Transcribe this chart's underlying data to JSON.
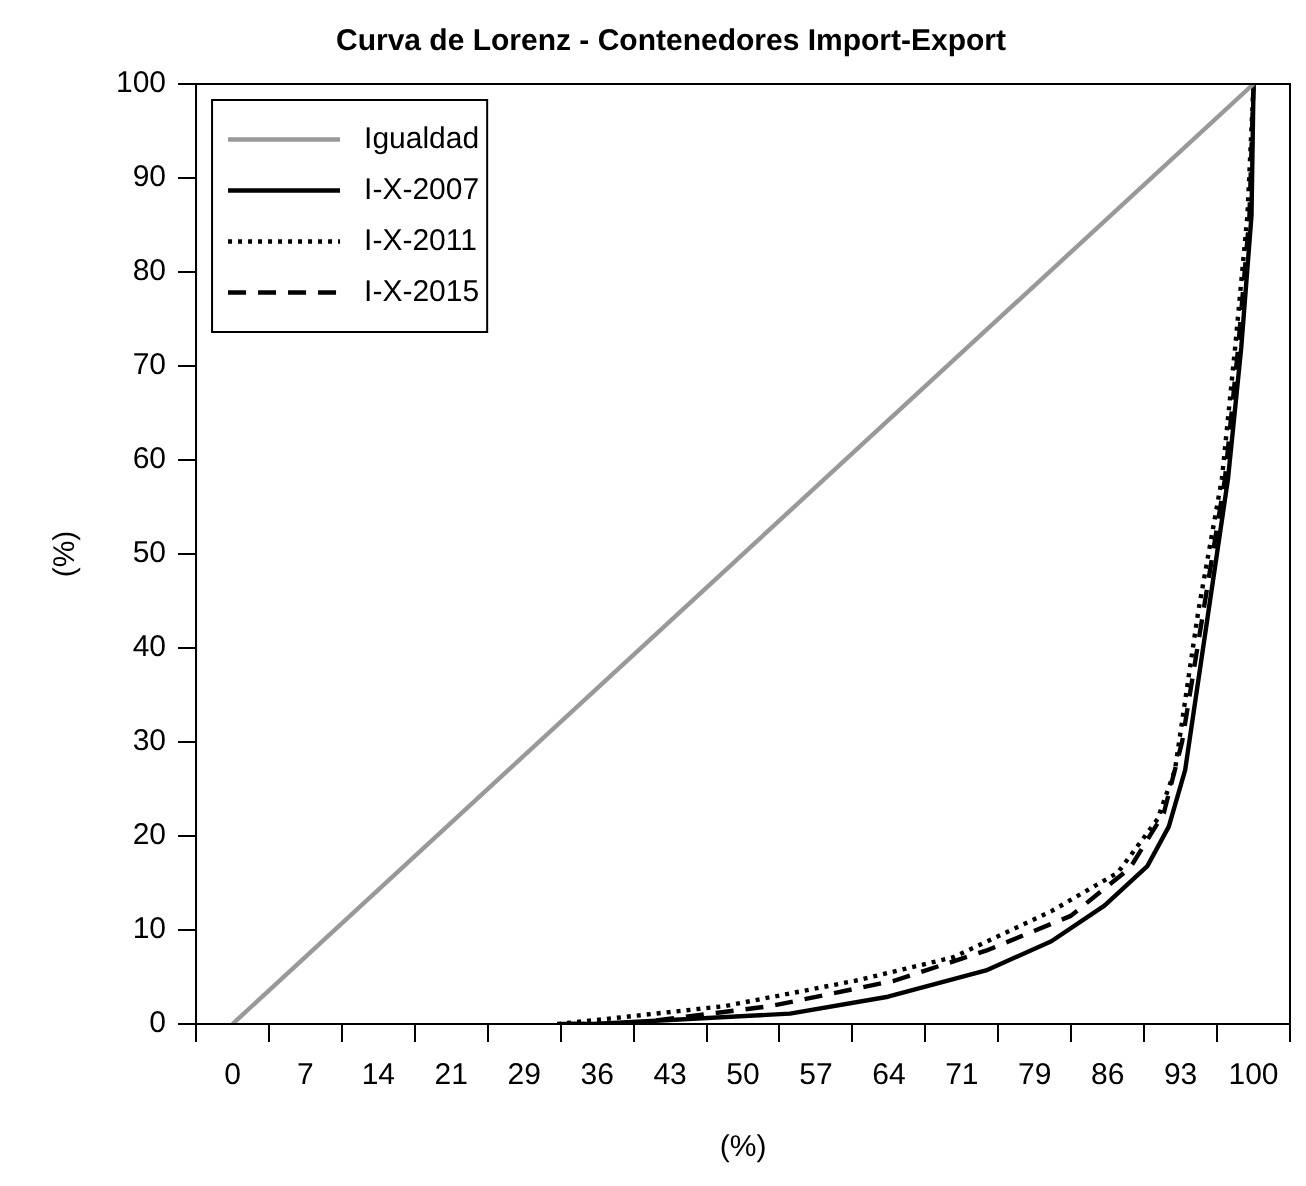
{
  "chart_data": {
    "type": "line",
    "title": "Curva de Lorenz - Contenedores Import-Export",
    "xlabel": "(%)",
    "ylabel": "(%)",
    "xlim": [
      -3.5714,
      103.5714
    ],
    "ylim": [
      0,
      100
    ],
    "xticks": [
      {
        "value": -3.5714,
        "label": null
      },
      {
        "value": 0,
        "label": "0"
      },
      {
        "value": 3.5714,
        "label": null
      },
      {
        "value": 7.1429,
        "label": "7"
      },
      {
        "value": 10.7143,
        "label": null
      },
      {
        "value": 14.2857,
        "label": "14"
      },
      {
        "value": 17.8571,
        "label": null
      },
      {
        "value": 21.4286,
        "label": "21"
      },
      {
        "value": 25,
        "label": null
      },
      {
        "value": 28.5714,
        "label": "29"
      },
      {
        "value": 32.1429,
        "label": null
      },
      {
        "value": 35.7143,
        "label": "36"
      },
      {
        "value": 39.2857,
        "label": null
      },
      {
        "value": 42.8571,
        "label": "43"
      },
      {
        "value": 46.4286,
        "label": null
      },
      {
        "value": 50,
        "label": "50"
      },
      {
        "value": 53.5714,
        "label": null
      },
      {
        "value": 57.1429,
        "label": "57"
      },
      {
        "value": 60.7143,
        "label": null
      },
      {
        "value": 64.2857,
        "label": "64"
      },
      {
        "value": 67.8571,
        "label": null
      },
      {
        "value": 71.4286,
        "label": "71"
      },
      {
        "value": 75,
        "label": null
      },
      {
        "value": 78.5714,
        "label": "79"
      },
      {
        "value": 82.1429,
        "label": null
      },
      {
        "value": 85.7143,
        "label": "86"
      },
      {
        "value": 89.2857,
        "label": null
      },
      {
        "value": 92.8571,
        "label": "93"
      },
      {
        "value": 96.4286,
        "label": null
      },
      {
        "value": 100,
        "label": "100"
      },
      {
        "value": 103.5714,
        "label": null
      }
    ],
    "yticks": [
      0,
      10,
      20,
      30,
      40,
      50,
      60,
      70,
      80,
      90,
      100
    ],
    "grid": false,
    "legend": "top left",
    "marker": "none",
    "series": [
      {
        "name": "Igualdad",
        "color": "#999999",
        "line_style": "solid",
        "x": [
          0,
          100
        ],
        "values": [
          0,
          100
        ]
      },
      {
        "name": "I-X-2007",
        "color": "#000000",
        "line_style": "solid",
        "x": [
          32.1,
          35.4,
          54.6,
          64.2,
          73.8,
          80.2,
          85.4,
          89.6,
          91.7,
          93.3,
          95.6,
          97.5,
          98.8,
          99.8,
          100
        ],
        "values": [
          0,
          0,
          1.1,
          2.9,
          5.7,
          8.8,
          12.6,
          16.8,
          21,
          27,
          44,
          58,
          72,
          86,
          100
        ]
      },
      {
        "name": "I-X-2011",
        "color": "#000000",
        "line_style": "dotted",
        "x": [
          31.8,
          35.4,
          48.2,
          61,
          70.6,
          80.2,
          86.7,
          90.6,
          92.3,
          94.6,
          96.9,
          98.2,
          99.4,
          100
        ],
        "values": [
          0,
          0.4,
          1.9,
          4.6,
          7.1,
          12,
          16.1,
          21.8,
          27,
          44,
          58,
          72,
          86,
          100
        ]
      },
      {
        "name": "I-X-2015",
        "color": "#000000",
        "line_style": "dashed",
        "x": [
          32.7,
          38.6,
          52.7,
          64.8,
          73.8,
          82.1,
          87.9,
          91.2,
          93,
          95.1,
          97.2,
          98.5,
          99.6,
          100
        ],
        "values": [
          0,
          0,
          1.9,
          4.6,
          7.8,
          11.5,
          16.6,
          22.4,
          30,
          44,
          58,
          72,
          86,
          100
        ]
      }
    ]
  }
}
